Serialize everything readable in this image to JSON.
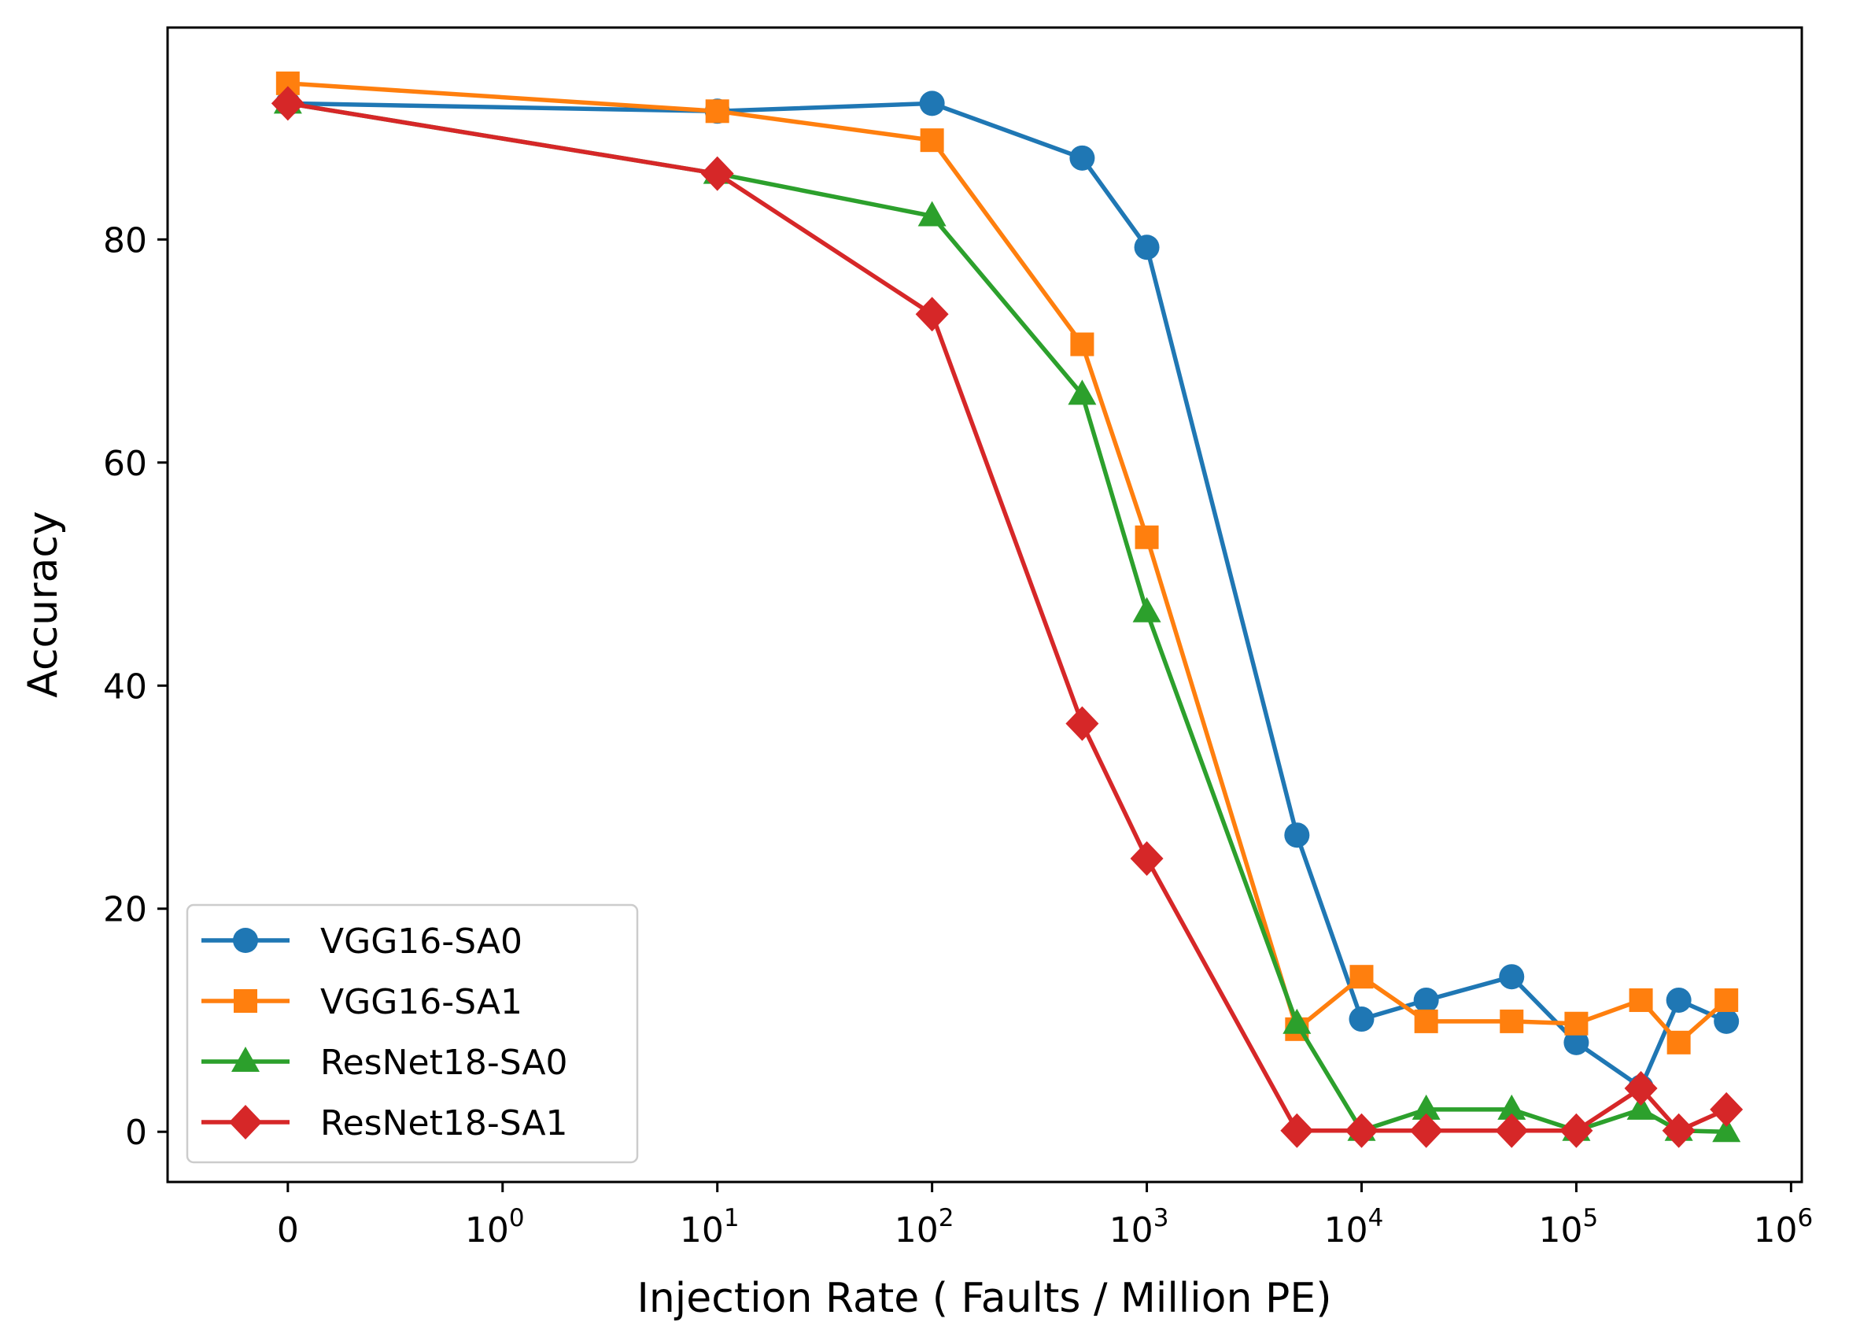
{
  "chart_data": {
    "type": "line",
    "title": "",
    "xlabel": "Injection Rate ( Faults / Million PE)",
    "ylabel": "Accuracy",
    "x_scale": "symlog",
    "x": [
      0,
      10,
      100,
      500,
      1000,
      5000,
      10000,
      20000,
      50000,
      100000,
      200000,
      300000,
      500000
    ],
    "x_ticks": [
      {
        "value": 0,
        "base": "0",
        "exp": ""
      },
      {
        "value": 1,
        "base": "10",
        "exp": "0"
      },
      {
        "value": 10,
        "base": "10",
        "exp": "1"
      },
      {
        "value": 100,
        "base": "10",
        "exp": "2"
      },
      {
        "value": 1000,
        "base": "10",
        "exp": "3"
      },
      {
        "value": 10000,
        "base": "10",
        "exp": "4"
      },
      {
        "value": 100000,
        "base": "10",
        "exp": "5"
      },
      {
        "value": 1000000,
        "base": "10",
        "exp": "6"
      }
    ],
    "y_ticks": [
      0,
      20,
      40,
      60,
      80
    ],
    "ylim": [
      -4.5,
      99
    ],
    "grid": false,
    "legend_position": "lower-left",
    "series": [
      {
        "name": "VGG16-SA0",
        "color": "#1f77b4",
        "marker": "circle",
        "values": [
          92.2,
          91.5,
          92.2,
          87.3,
          79.3,
          26.6,
          10.1,
          11.8,
          13.9,
          8.0,
          4.0,
          11.8,
          9.9
        ]
      },
      {
        "name": "VGG16-SA1",
        "color": "#ff7f0e",
        "marker": "square",
        "values": [
          94.0,
          91.5,
          88.9,
          70.6,
          53.3,
          9.2,
          13.9,
          9.9,
          9.9,
          9.7,
          11.8,
          8.0,
          11.8
        ]
      },
      {
        "name": "ResNet18-SA0",
        "color": "#2ca02c",
        "marker": "triangle",
        "values": [
          92.2,
          85.9,
          82.1,
          66.1,
          46.6,
          9.7,
          0.1,
          2.0,
          2.0,
          0.1,
          2.0,
          0.1,
          0.0
        ]
      },
      {
        "name": "ResNet18-SA1",
        "color": "#d62728",
        "marker": "diamond",
        "values": [
          92.2,
          85.9,
          73.3,
          36.6,
          24.5,
          0.1,
          0.1,
          0.1,
          0.1,
          0.1,
          3.9,
          0.1,
          2.0
        ]
      }
    ]
  }
}
